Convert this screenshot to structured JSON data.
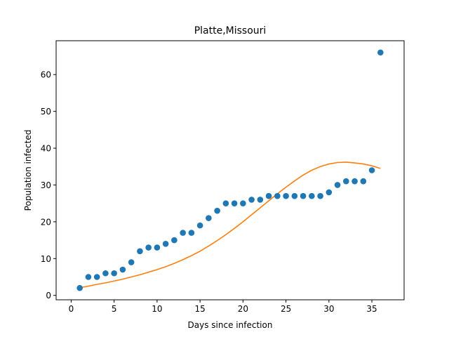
{
  "chart_data": {
    "type": "scatter",
    "title": "Platte,Missouri",
    "xlabel": "Days since infection",
    "ylabel": "Population infected",
    "xlim": [
      -1.75,
      38.75
    ],
    "ylim": [
      -1.2,
      69.2
    ],
    "xticks": [
      0,
      5,
      10,
      15,
      20,
      25,
      30,
      35
    ],
    "yticks": [
      0,
      10,
      20,
      30,
      40,
      50,
      60
    ],
    "grid": false,
    "series": [
      {
        "kind": "scatter",
        "color": "#1f77b4",
        "x": [
          1,
          2,
          3,
          4,
          5,
          6,
          7,
          8,
          9,
          10,
          11,
          12,
          13,
          14,
          15,
          16,
          17,
          18,
          19,
          20,
          21,
          22,
          23,
          24,
          25,
          26,
          27,
          28,
          29,
          30,
          31,
          32,
          33,
          34,
          35,
          36
        ],
        "y": [
          2,
          5,
          5,
          6,
          6,
          7,
          9,
          12,
          13,
          13,
          14,
          15,
          17,
          17,
          19,
          21,
          23,
          25,
          25,
          25,
          26,
          26,
          27,
          27,
          27,
          27,
          27,
          27,
          27,
          28,
          30,
          31,
          31,
          31,
          34,
          66
        ]
      },
      {
        "kind": "line",
        "color": "#ff7f0e",
        "x": [
          1,
          2,
          3,
          4,
          5,
          6,
          7,
          8,
          9,
          10,
          11,
          12,
          13,
          14,
          15,
          16,
          17,
          18,
          19,
          20,
          21,
          22,
          23,
          24,
          25,
          26,
          27,
          28,
          29,
          30,
          31,
          32,
          33,
          34,
          35,
          36
        ],
        "y": [
          2.1,
          2.5,
          3.0,
          3.4,
          3.9,
          4.4,
          5.0,
          5.6,
          6.3,
          7.0,
          7.8,
          8.7,
          9.7,
          10.8,
          12.0,
          13.4,
          14.9,
          16.5,
          18.2,
          20.0,
          21.9,
          23.8,
          25.7,
          27.6,
          29.4,
          31.1,
          32.7,
          34.0,
          35.0,
          35.7,
          36.1,
          36.2,
          36.0,
          35.7,
          35.2,
          34.5
        ]
      }
    ]
  }
}
